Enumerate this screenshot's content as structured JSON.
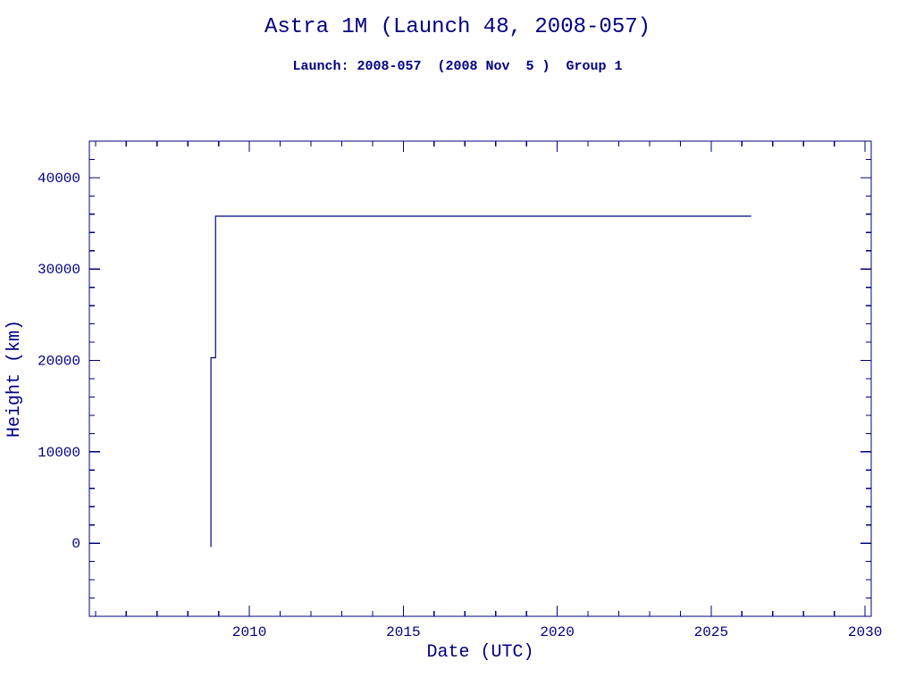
{
  "chart_data": {
    "type": "line",
    "title": "Astra 1M (Launch 48, 2008-057)",
    "subtitle": "Launch: 2008-057  (2008 Nov  5 )  Group 1",
    "xlabel": "Date (UTC)",
    "ylabel": "Height (km)",
    "xlim": [
      2004.8,
      2030.2
    ],
    "ylim": [
      -8000,
      44000
    ],
    "x_major_ticks": [
      2010,
      2015,
      2020,
      2025,
      2030
    ],
    "x_minor_step": 1,
    "y_major_ticks": [
      0,
      10000,
      20000,
      30000,
      40000
    ],
    "y_minor_step": 2000,
    "grid": false,
    "legend": "none",
    "line_color": "#000080",
    "series": [
      {
        "name": "height-km",
        "points": [
          [
            2008.75,
            -400
          ],
          [
            2008.75,
            20300
          ],
          [
            2008.9,
            20300
          ],
          [
            2008.9,
            35786
          ],
          [
            2026.3,
            35786
          ]
        ]
      }
    ]
  }
}
